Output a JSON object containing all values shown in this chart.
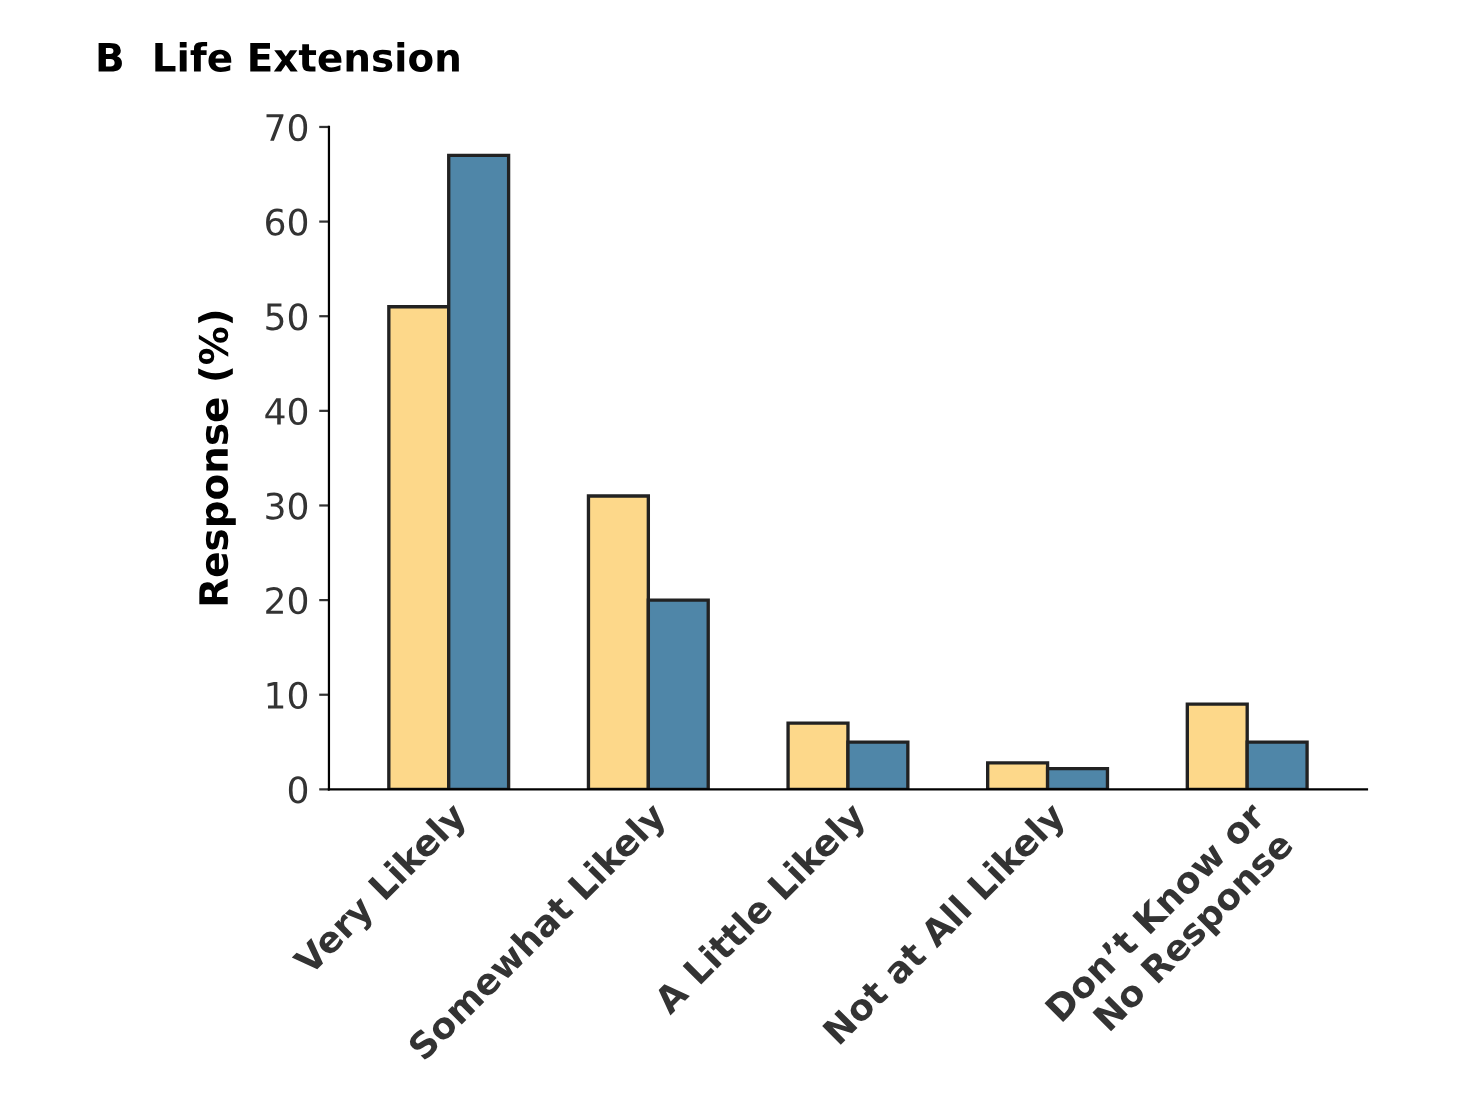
{
  "chart_data": {
    "type": "bar",
    "title": "B  Life Extension",
    "ylabel": "Response (%)",
    "categories": [
      "Very Likely",
      "Somewhat Likely",
      "A Little Likely",
      "Not at All Likely",
      "Don’t Know or\nNo Response"
    ],
    "series": [
      {
        "color": "#fdd88a",
        "values": [
          51,
          31,
          7,
          2.8,
          9
        ]
      },
      {
        "color": "#4f86a8",
        "values": [
          67,
          20,
          5,
          2.2,
          5
        ]
      }
    ],
    "ylim": [
      0,
      70
    ],
    "yticks": [
      0,
      10,
      20,
      30,
      40,
      50,
      60,
      70
    ],
    "grid": false,
    "legend": false
  }
}
